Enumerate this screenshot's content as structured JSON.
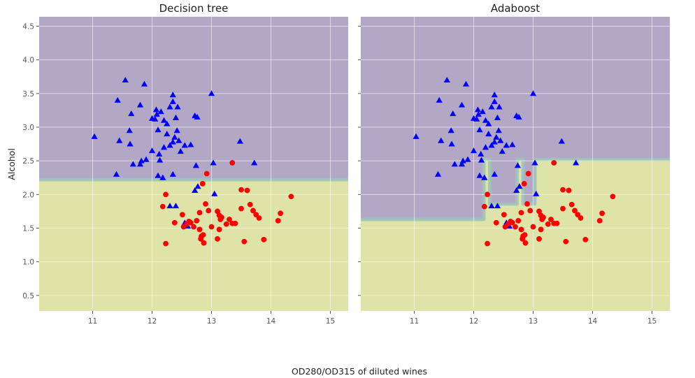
{
  "figure": {
    "xlabel": "OD280/OD315 of diluted wines",
    "ylabel": "Alcohol"
  },
  "colors": {
    "region_class0": "#b2a8c5",
    "region_class1": "#dee3a8",
    "boundary_band": "#9dc3ba",
    "grid": "#ffffff",
    "class0_marker": "#0000ff",
    "class1_marker": "#ff0000"
  },
  "chart_data": [
    {
      "type": "scatter",
      "title": "Decision tree",
      "xlim": [
        10.1,
        15.3
      ],
      "ylim": [
        0.27,
        4.64
      ],
      "x_ticks": [
        "11",
        "12",
        "13",
        "14",
        "15"
      ],
      "y_ticks": [
        "0.5",
        "1.0",
        "1.5",
        "2.0",
        "2.5",
        "3.0",
        "3.5",
        "4.0",
        "4.5"
      ],
      "decision_boundary": {
        "description": "horizontal threshold",
        "y": 2.22
      }
    },
    {
      "type": "scatter",
      "title": "Adaboost",
      "xlim": [
        10.1,
        15.3
      ],
      "ylim": [
        0.27,
        4.64
      ],
      "x_ticks": [
        "11",
        "12",
        "13",
        "14",
        "15"
      ],
      "y_ticks": [
        "0.5",
        "1.0",
        "1.5",
        "2.0",
        "2.5",
        "3.0",
        "3.5",
        "4.0",
        "4.5"
      ],
      "decision_boundary": {
        "description": "stepwise boundary",
        "path": [
          [
            10.1,
            1.63
          ],
          [
            12.17,
            1.63
          ],
          [
            12.17,
            2.52
          ],
          [
            12.27,
            2.52
          ],
          [
            12.27,
            1.86
          ],
          [
            12.73,
            1.86
          ],
          [
            12.73,
            2.52
          ],
          [
            12.83,
            2.52
          ],
          [
            12.83,
            1.86
          ],
          [
            13.03,
            1.86
          ],
          [
            13.03,
            2.52
          ],
          [
            15.3,
            2.52
          ]
        ]
      }
    }
  ],
  "series": [
    {
      "class": 0,
      "marker": "triangle",
      "color": "#0000ff",
      "points": [
        [
          11.03,
          2.86
        ],
        [
          11.45,
          2.8
        ],
        [
          11.42,
          3.4
        ],
        [
          11.55,
          3.7
        ],
        [
          11.65,
          3.2
        ],
        [
          11.62,
          2.95
        ],
        [
          11.63,
          2.75
        ],
        [
          11.8,
          3.33
        ],
        [
          11.87,
          3.64
        ],
        [
          11.8,
          2.45
        ],
        [
          11.82,
          2.5
        ],
        [
          11.9,
          2.52
        ],
        [
          11.68,
          2.45
        ],
        [
          11.4,
          2.3
        ],
        [
          12.0,
          3.13
        ],
        [
          12.05,
          3.12
        ],
        [
          12.07,
          3.26
        ],
        [
          12.08,
          3.19
        ],
        [
          12.15,
          3.23
        ],
        [
          12.1,
          2.96
        ],
        [
          12.0,
          2.65
        ],
        [
          12.12,
          2.6
        ],
        [
          12.2,
          2.7
        ],
        [
          12.25,
          3.05
        ],
        [
          12.2,
          3.1
        ],
        [
          12.3,
          3.3
        ],
        [
          12.35,
          3.38
        ],
        [
          12.35,
          3.48
        ],
        [
          12.43,
          3.3
        ],
        [
          12.25,
          2.9
        ],
        [
          12.3,
          2.73
        ],
        [
          12.35,
          2.78
        ],
        [
          12.38,
          2.85
        ],
        [
          12.42,
          2.95
        ],
        [
          12.4,
          3.14
        ],
        [
          12.45,
          2.8
        ],
        [
          12.48,
          2.64
        ],
        [
          12.55,
          2.73
        ],
        [
          12.65,
          2.74
        ],
        [
          12.35,
          2.3
        ],
        [
          12.4,
          1.83
        ],
        [
          12.3,
          1.83
        ],
        [
          12.18,
          2.25
        ],
        [
          12.1,
          2.28
        ],
        [
          12.13,
          2.51
        ],
        [
          12.74,
          2.43
        ],
        [
          12.77,
          2.12
        ],
        [
          12.72,
          2.06
        ],
        [
          12.76,
          3.15
        ],
        [
          12.72,
          3.17
        ],
        [
          13.0,
          3.5
        ],
        [
          13.03,
          2.47
        ],
        [
          13.05,
          2.01
        ],
        [
          13.48,
          2.79
        ],
        [
          13.72,
          2.47
        ],
        [
          12.55,
          1.58
        ],
        [
          12.6,
          1.53
        ]
      ]
    },
    {
      "class": 1,
      "marker": "circle",
      "color": "#ff0000",
      "points": [
        [
          12.23,
          2.0
        ],
        [
          12.18,
          1.82
        ],
        [
          12.38,
          1.58
        ],
        [
          12.51,
          1.7
        ],
        [
          12.53,
          1.52
        ],
        [
          12.58,
          1.56
        ],
        [
          12.65,
          1.58
        ],
        [
          12.7,
          1.52
        ],
        [
          12.75,
          1.61
        ],
        [
          12.8,
          1.48
        ],
        [
          12.83,
          1.38
        ],
        [
          12.86,
          1.4
        ],
        [
          12.82,
          1.34
        ],
        [
          12.87,
          1.28
        ],
        [
          12.9,
          1.86
        ],
        [
          12.92,
          2.31
        ],
        [
          12.85,
          2.16
        ],
        [
          12.8,
          1.73
        ],
        [
          12.95,
          1.76
        ],
        [
          12.23,
          1.27
        ],
        [
          13.1,
          1.34
        ],
        [
          13.13,
          1.48
        ],
        [
          13.13,
          1.69
        ],
        [
          13.15,
          1.63
        ],
        [
          13.25,
          1.56
        ],
        [
          13.3,
          1.63
        ],
        [
          13.35,
          2.47
        ],
        [
          13.4,
          1.57
        ],
        [
          13.5,
          1.79
        ],
        [
          13.5,
          2.07
        ],
        [
          13.55,
          1.3
        ],
        [
          13.6,
          2.06
        ],
        [
          13.65,
          1.85
        ],
        [
          13.7,
          1.76
        ],
        [
          13.75,
          1.7
        ],
        [
          13.8,
          1.65
        ],
        [
          13.88,
          1.33
        ],
        [
          14.12,
          1.61
        ],
        [
          14.16,
          1.72
        ],
        [
          14.34,
          1.97
        ],
        [
          13.35,
          1.57
        ],
        [
          13.1,
          1.75
        ],
        [
          13.17,
          1.66
        ],
        [
          13.0,
          1.52
        ],
        [
          12.62,
          1.6
        ]
      ]
    }
  ]
}
